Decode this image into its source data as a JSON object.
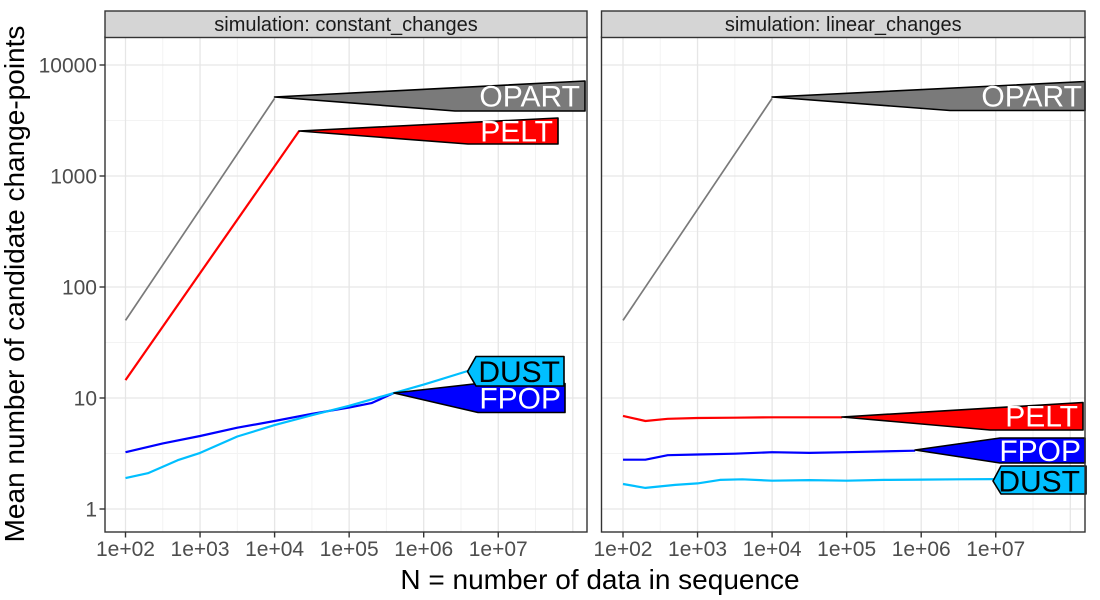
{
  "chart_data": {
    "type": "line",
    "title": "",
    "xlabel": "N = number of data in sequence",
    "ylabel": "Mean number of candidate change-points",
    "x_scale": "log10",
    "y_scale": "log10",
    "x_tick_labels": [
      "1e+02",
      "1e+03",
      "1e+04",
      "1e+05",
      "1e+06",
      "1e+07"
    ],
    "x_tick_log10": [
      2,
      3,
      4,
      5,
      6,
      7
    ],
    "y_tick_labels": [
      "1",
      "10",
      "100",
      "1000",
      "10000"
    ],
    "y_tick_log10": [
      0,
      1,
      2,
      3,
      4
    ],
    "grid": "major-and-minor",
    "legend": "direct-labels-on-lines",
    "colors": {
      "OPART": "#7a7a7a",
      "PELT": "#ff0000",
      "FPOP": "#0000ff",
      "DUST": "#00bfff"
    },
    "label_text_colors": {
      "OPART": "#ffffff",
      "PELT": "#ffffff",
      "FPOP": "#ffffff",
      "DUST": "#000000"
    },
    "facets": [
      {
        "label": "simulation: constant_changes",
        "series": [
          {
            "name": "OPART",
            "points": [
              [
                2,
                50
              ],
              [
                4,
                5000
              ]
            ]
          },
          {
            "name": "PELT",
            "points": [
              [
                2,
                14.5
              ],
              [
                4.33,
                2550
              ]
            ]
          },
          {
            "name": "FPOP",
            "points": [
              [
                2,
                3.25
              ],
              [
                2.5,
                3.9
              ],
              [
                3,
                4.55
              ],
              [
                3.5,
                5.4
              ],
              [
                4,
                6.2
              ],
              [
                4.5,
                7.2
              ],
              [
                5,
                8.2
              ],
              [
                5.3,
                9.0
              ],
              [
                5.6,
                11.1
              ]
            ]
          },
          {
            "name": "DUST",
            "points": [
              [
                2,
                1.9
              ],
              [
                2.3,
                2.1
              ],
              [
                2.7,
                2.75
              ],
              [
                3,
                3.2
              ],
              [
                3.5,
                4.5
              ],
              [
                4,
                5.7
              ],
              [
                4.5,
                7.0
              ],
              [
                5,
                8.5
              ],
              [
                5.5,
                10.6
              ],
              [
                6,
                13.2
              ],
              [
                6.59,
                17.5
              ]
            ]
          }
        ]
      },
      {
        "label": "simulation: linear_changes",
        "series": [
          {
            "name": "OPART",
            "points": [
              [
                2,
                50
              ],
              [
                4,
                5000
              ]
            ]
          },
          {
            "name": "PELT",
            "points": [
              [
                2,
                6.9
              ],
              [
                2.3,
                6.2
              ],
              [
                2.6,
                6.5
              ],
              [
                3,
                6.6
              ],
              [
                3.5,
                6.65
              ],
              [
                4,
                6.7
              ],
              [
                4.94,
                6.7
              ]
            ]
          },
          {
            "name": "FPOP",
            "points": [
              [
                2,
                2.78
              ],
              [
                2.3,
                2.78
              ],
              [
                2.6,
                3.05
              ],
              [
                3,
                3.1
              ],
              [
                3.5,
                3.15
              ],
              [
                4,
                3.25
              ],
              [
                4.5,
                3.2
              ],
              [
                5,
                3.25
              ],
              [
                5.92,
                3.35
              ]
            ]
          },
          {
            "name": "DUST",
            "points": [
              [
                2,
                1.68
              ],
              [
                2.3,
                1.55
              ],
              [
                2.7,
                1.65
              ],
              [
                3,
                1.7
              ],
              [
                3.3,
                1.83
              ],
              [
                3.6,
                1.85
              ],
              [
                4,
                1.8
              ],
              [
                4.5,
                1.82
              ],
              [
                5,
                1.8
              ],
              [
                5.5,
                1.83
              ],
              [
                6,
                1.84
              ],
              [
                6.5,
                1.85
              ],
              [
                6.97,
                1.86
              ]
            ]
          }
        ]
      }
    ]
  }
}
